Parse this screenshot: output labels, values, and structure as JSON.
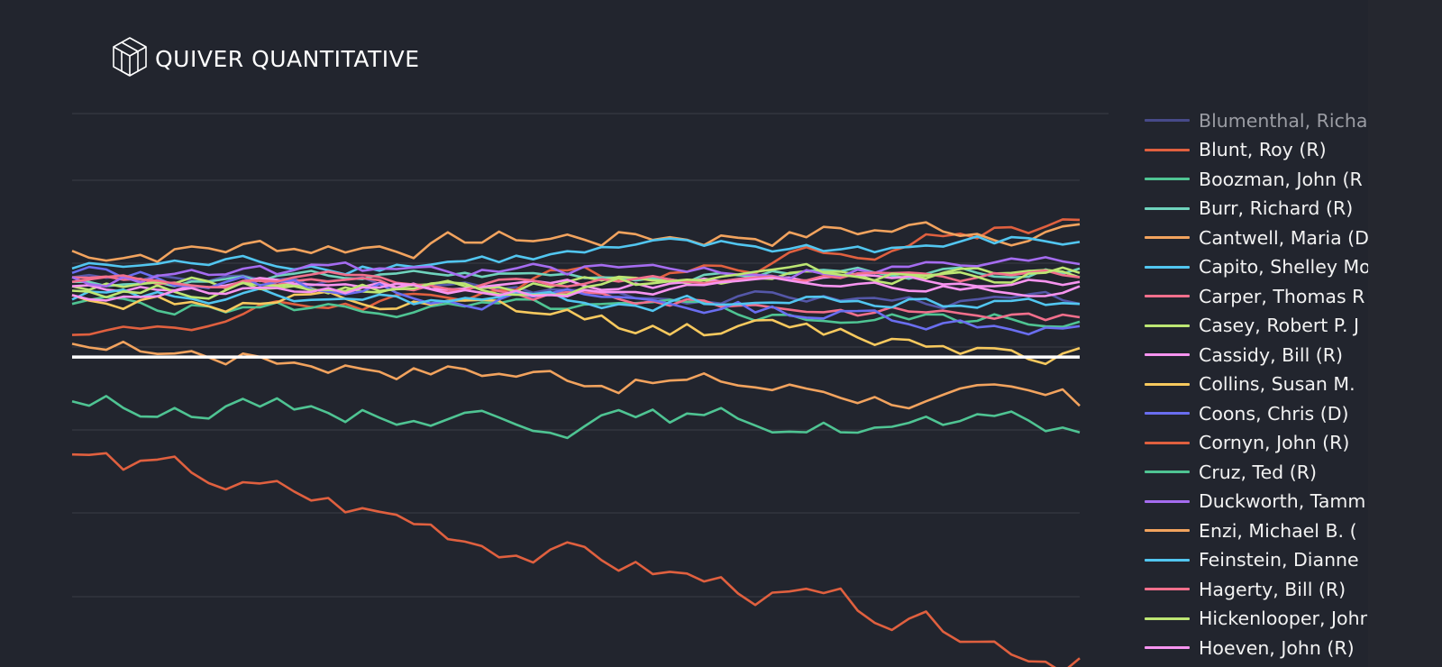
{
  "brand": {
    "name": "QUIVER QUANTITATIVE",
    "logo_icon": "cube-wireframe-icon"
  },
  "colors": {
    "background": "#22252e",
    "grid": "#3a3d47",
    "baseline": "#ffffff"
  },
  "chart_data": {
    "type": "line",
    "title": "",
    "xlabel": "",
    "ylabel": "",
    "grid": true,
    "legend_placement": "right",
    "reference_line": {
      "y": 0,
      "color": "#ffffff"
    },
    "ylim": [
      -70,
      55
    ],
    "x_count": 60,
    "series": [
      {
        "name": "Blumenthal, Richard (D)",
        "color": "#5457a8",
        "start": 18,
        "end": 12,
        "vol": 1.2
      },
      {
        "name": "Blunt, Roy (R)",
        "color": "#e0603f",
        "start": 5,
        "end": 31,
        "vol": 1.8
      },
      {
        "name": "Boozman, John (R)",
        "color": "#4fc493",
        "start": 12,
        "end": 8,
        "vol": 1.5
      },
      {
        "name": "Burr, Richard (R)",
        "color": "#6fd3bd",
        "start": 17,
        "end": 20,
        "vol": 1.0
      },
      {
        "name": "Cantwell, Maria (D)",
        "color": "#f2a35e",
        "start": 24,
        "end": 30,
        "vol": 2.2
      },
      {
        "name": "Capito, Shelley Moore (R)",
        "color": "#52c6f0",
        "start": 20,
        "end": 26,
        "vol": 1.5
      },
      {
        "name": "Carper, Thomas R. (D)",
        "color": "#f26f8c",
        "start": 18,
        "end": 9,
        "vol": 1.2
      },
      {
        "name": "Casey, Robert P. Jr. (D)",
        "color": "#bde673",
        "start": 16,
        "end": 18,
        "vol": 1.3
      },
      {
        "name": "Cassidy, Bill (R)",
        "color": "#f794f0",
        "start": 16,
        "end": 17,
        "vol": 1.1
      },
      {
        "name": "Collins, Susan M. (R)",
        "color": "#f7c95e",
        "start": 14,
        "end": 2,
        "vol": 2.0
      },
      {
        "name": "Coons, Chris (D)",
        "color": "#6a6ef0",
        "start": 19,
        "end": 7,
        "vol": 1.6
      },
      {
        "name": "Cornyn, John (R)",
        "color": "#e0603f",
        "start": -22,
        "end": -68,
        "vol": 2.5
      },
      {
        "name": "Cruz, Ted (R)",
        "color": "#4fc493",
        "start": -10,
        "end": -17,
        "vol": 2.0
      },
      {
        "name": "Duckworth, Tammy (D)",
        "color": "#a56cf0",
        "start": 18,
        "end": 21,
        "vol": 1.4
      },
      {
        "name": "Enzi, Michael B. (R)",
        "color": "#f2a35e",
        "start": 3,
        "end": -11,
        "vol": 2.0
      },
      {
        "name": "Feinstein, Dianne (D)",
        "color": "#52c6f0",
        "start": 13,
        "end": 12,
        "vol": 1.5
      },
      {
        "name": "Hagerty, Bill (R)",
        "color": "#f26f8c",
        "start": 17,
        "end": 18,
        "vol": 1.0
      },
      {
        "name": "Hickenlooper, John (D)",
        "color": "#bde673",
        "start": 15,
        "end": 19,
        "vol": 1.4
      },
      {
        "name": "Hoeven, John (R)",
        "color": "#f794f0",
        "start": 14,
        "end": 16,
        "vol": 1.1
      }
    ]
  },
  "legend": {
    "items": [
      {
        "label": "Blumenthal, Richa",
        "color": "#5457a8",
        "faded": true
      },
      {
        "label": "Blunt, Roy (R)",
        "color": "#e0603f"
      },
      {
        "label": "Boozman, John (R",
        "color": "#4fc493"
      },
      {
        "label": "Burr, Richard (R)",
        "color": "#6fd3bd"
      },
      {
        "label": "Cantwell, Maria (D",
        "color": "#f2a35e"
      },
      {
        "label": "Capito, Shelley Mo",
        "color": "#52c6f0"
      },
      {
        "label": "Carper, Thomas R",
        "color": "#f26f8c"
      },
      {
        "label": "Casey, Robert P. J",
        "color": "#bde673"
      },
      {
        "label": "Cassidy, Bill (R)",
        "color": "#f794f0"
      },
      {
        "label": "Collins, Susan M.",
        "color": "#f7c95e"
      },
      {
        "label": "Coons, Chris (D)",
        "color": "#6a6ef0"
      },
      {
        "label": "Cornyn, John (R)",
        "color": "#e0603f"
      },
      {
        "label": "Cruz, Ted (R)",
        "color": "#4fc493"
      },
      {
        "label": "Duckworth, Tamm",
        "color": "#a56cf0"
      },
      {
        "label": "Enzi, Michael B. (",
        "color": "#f2a35e"
      },
      {
        "label": "Feinstein, Dianne",
        "color": "#52c6f0"
      },
      {
        "label": "Hagerty, Bill (R)",
        "color": "#f26f8c"
      },
      {
        "label": "Hickenlooper, Johr",
        "color": "#bde673"
      },
      {
        "label": "Hoeven, John (R)",
        "color": "#f794f0"
      }
    ]
  }
}
